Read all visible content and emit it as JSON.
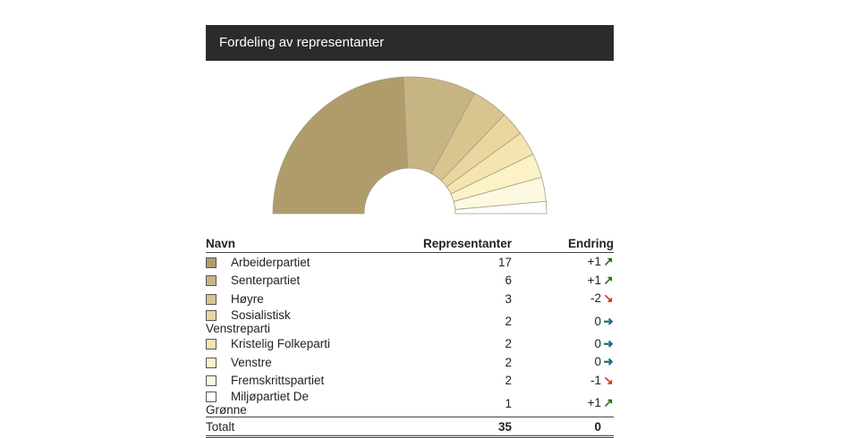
{
  "header": {
    "title": "Fordeling av representanter"
  },
  "table": {
    "col_name": "Navn",
    "col_reps": "Representanter",
    "col_change": "Endring",
    "total_label": "Totalt",
    "total_reps": "35",
    "total_change": "0"
  },
  "chart_data": {
    "type": "pie",
    "variant": "half-donut",
    "title": "Fordeling av representanter",
    "categories": [
      "Arbeiderpartiet",
      "Senterpartiet",
      "Høyre",
      "Sosialistisk Venstreparti",
      "Kristelig Folkeparti",
      "Venstre",
      "Fremskrittspartiet",
      "Miljøpartiet De Grønne"
    ],
    "values": [
      17,
      6,
      3,
      2,
      2,
      2,
      2,
      1
    ],
    "changes": [
      "+1",
      "+1",
      "-2",
      "0",
      "0",
      "0",
      "-1",
      "+1"
    ],
    "change_direction": [
      "up",
      "up",
      "down",
      "flat",
      "flat",
      "flat",
      "down",
      "up"
    ],
    "colors": [
      "#b09c6a",
      "#c7b483",
      "#d9c48f",
      "#ebd59f",
      "#f5e4b0",
      "#fbf2c8",
      "#fdf9e0",
      "#ffffff"
    ]
  }
}
